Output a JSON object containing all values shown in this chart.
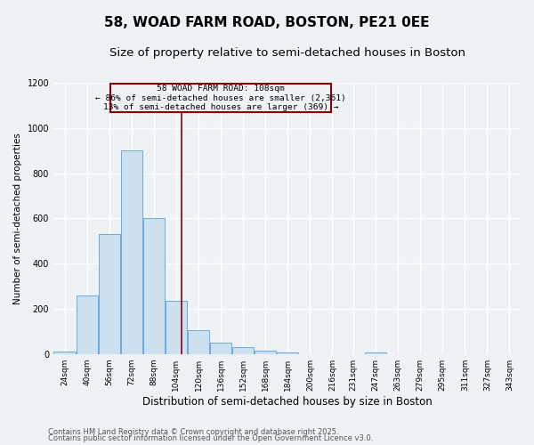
{
  "title1": "58, WOAD FARM ROAD, BOSTON, PE21 0EE",
  "title2": "Size of property relative to semi-detached houses in Boston",
  "xlabel": "Distribution of semi-detached houses by size in Boston",
  "ylabel": "Number of semi-detached properties",
  "bar_centers": [
    24,
    40,
    56,
    72,
    88,
    104,
    120,
    136,
    152,
    168,
    184,
    200,
    216,
    231,
    247,
    263,
    279,
    295,
    311,
    327,
    343
  ],
  "bar_heights": [
    10,
    260,
    530,
    900,
    600,
    235,
    105,
    50,
    30,
    15,
    5,
    0,
    0,
    0,
    5,
    0,
    0,
    0,
    0,
    0,
    0
  ],
  "bar_width": 15.5,
  "bar_color": "#cce0f0",
  "bar_edge_color": "#6aace6",
  "property_size": 108,
  "vline_color": "#8b0000",
  "ann_line1": "58 WOAD FARM ROAD: 108sqm",
  "ann_line2": "← 86% of semi-detached houses are smaller (2,361)",
  "ann_line3": "13% of semi-detached houses are larger (369) →",
  "annotation_box_color": "#8b0000",
  "ylim": [
    0,
    1200
  ],
  "yticks": [
    0,
    200,
    400,
    600,
    800,
    1000,
    1200
  ],
  "footer1": "Contains HM Land Registry data © Crown copyright and database right 2025.",
  "footer2": "Contains public sector information licensed under the Open Government Licence v3.0.",
  "bg_color": "#eef2f7",
  "grid_color": "#ffffff",
  "title_fontsize": 11,
  "subtitle_fontsize": 9.5,
  "xlabel_fontsize": 8.5,
  "ylabel_fontsize": 7.5,
  "tick_fontsize": 6.5,
  "footer_fontsize": 6
}
